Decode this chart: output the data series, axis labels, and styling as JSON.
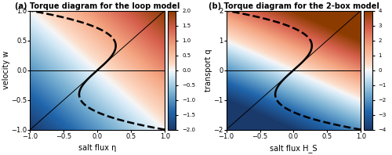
{
  "panel_a": {
    "title": "(a) Torque diagram for the loop model",
    "xlabel": "salt flux η",
    "ylabel": "velocity w",
    "xlim": [
      -1,
      1
    ],
    "ylim": [
      -1,
      1
    ],
    "cmap_vmin": -2,
    "cmap_vmax": 2,
    "cb_ticks": [
      -2,
      -1.5,
      -1,
      -0.5,
      0,
      0.5,
      1,
      1.5,
      2
    ],
    "xticks": [
      -1,
      -0.5,
      0,
      0.5,
      1
    ],
    "yticks": [
      -1,
      -0.5,
      0,
      0.5,
      1
    ]
  },
  "panel_b": {
    "title": "(b) Torque diagram for the 2-box model",
    "xlabel": "salt flux H_S",
    "ylabel": "transport q",
    "xlim": [
      -1,
      1
    ],
    "ylim": [
      -2,
      2
    ],
    "cmap_vmin": -4,
    "cmap_vmax": 4,
    "cb_ticks": [
      -4,
      -3,
      -2,
      -1,
      0,
      1,
      2,
      3,
      4
    ],
    "xticks": [
      -1,
      -0.5,
      0,
      0.5,
      1
    ],
    "yticks": [
      -2,
      -1,
      0,
      1,
      2
    ]
  },
  "cmap": "RdYlBu_r",
  "line_lw": 1.8,
  "thin_lw": 0.7,
  "figsize": [
    5.0,
    1.98
  ],
  "dpi": 100
}
